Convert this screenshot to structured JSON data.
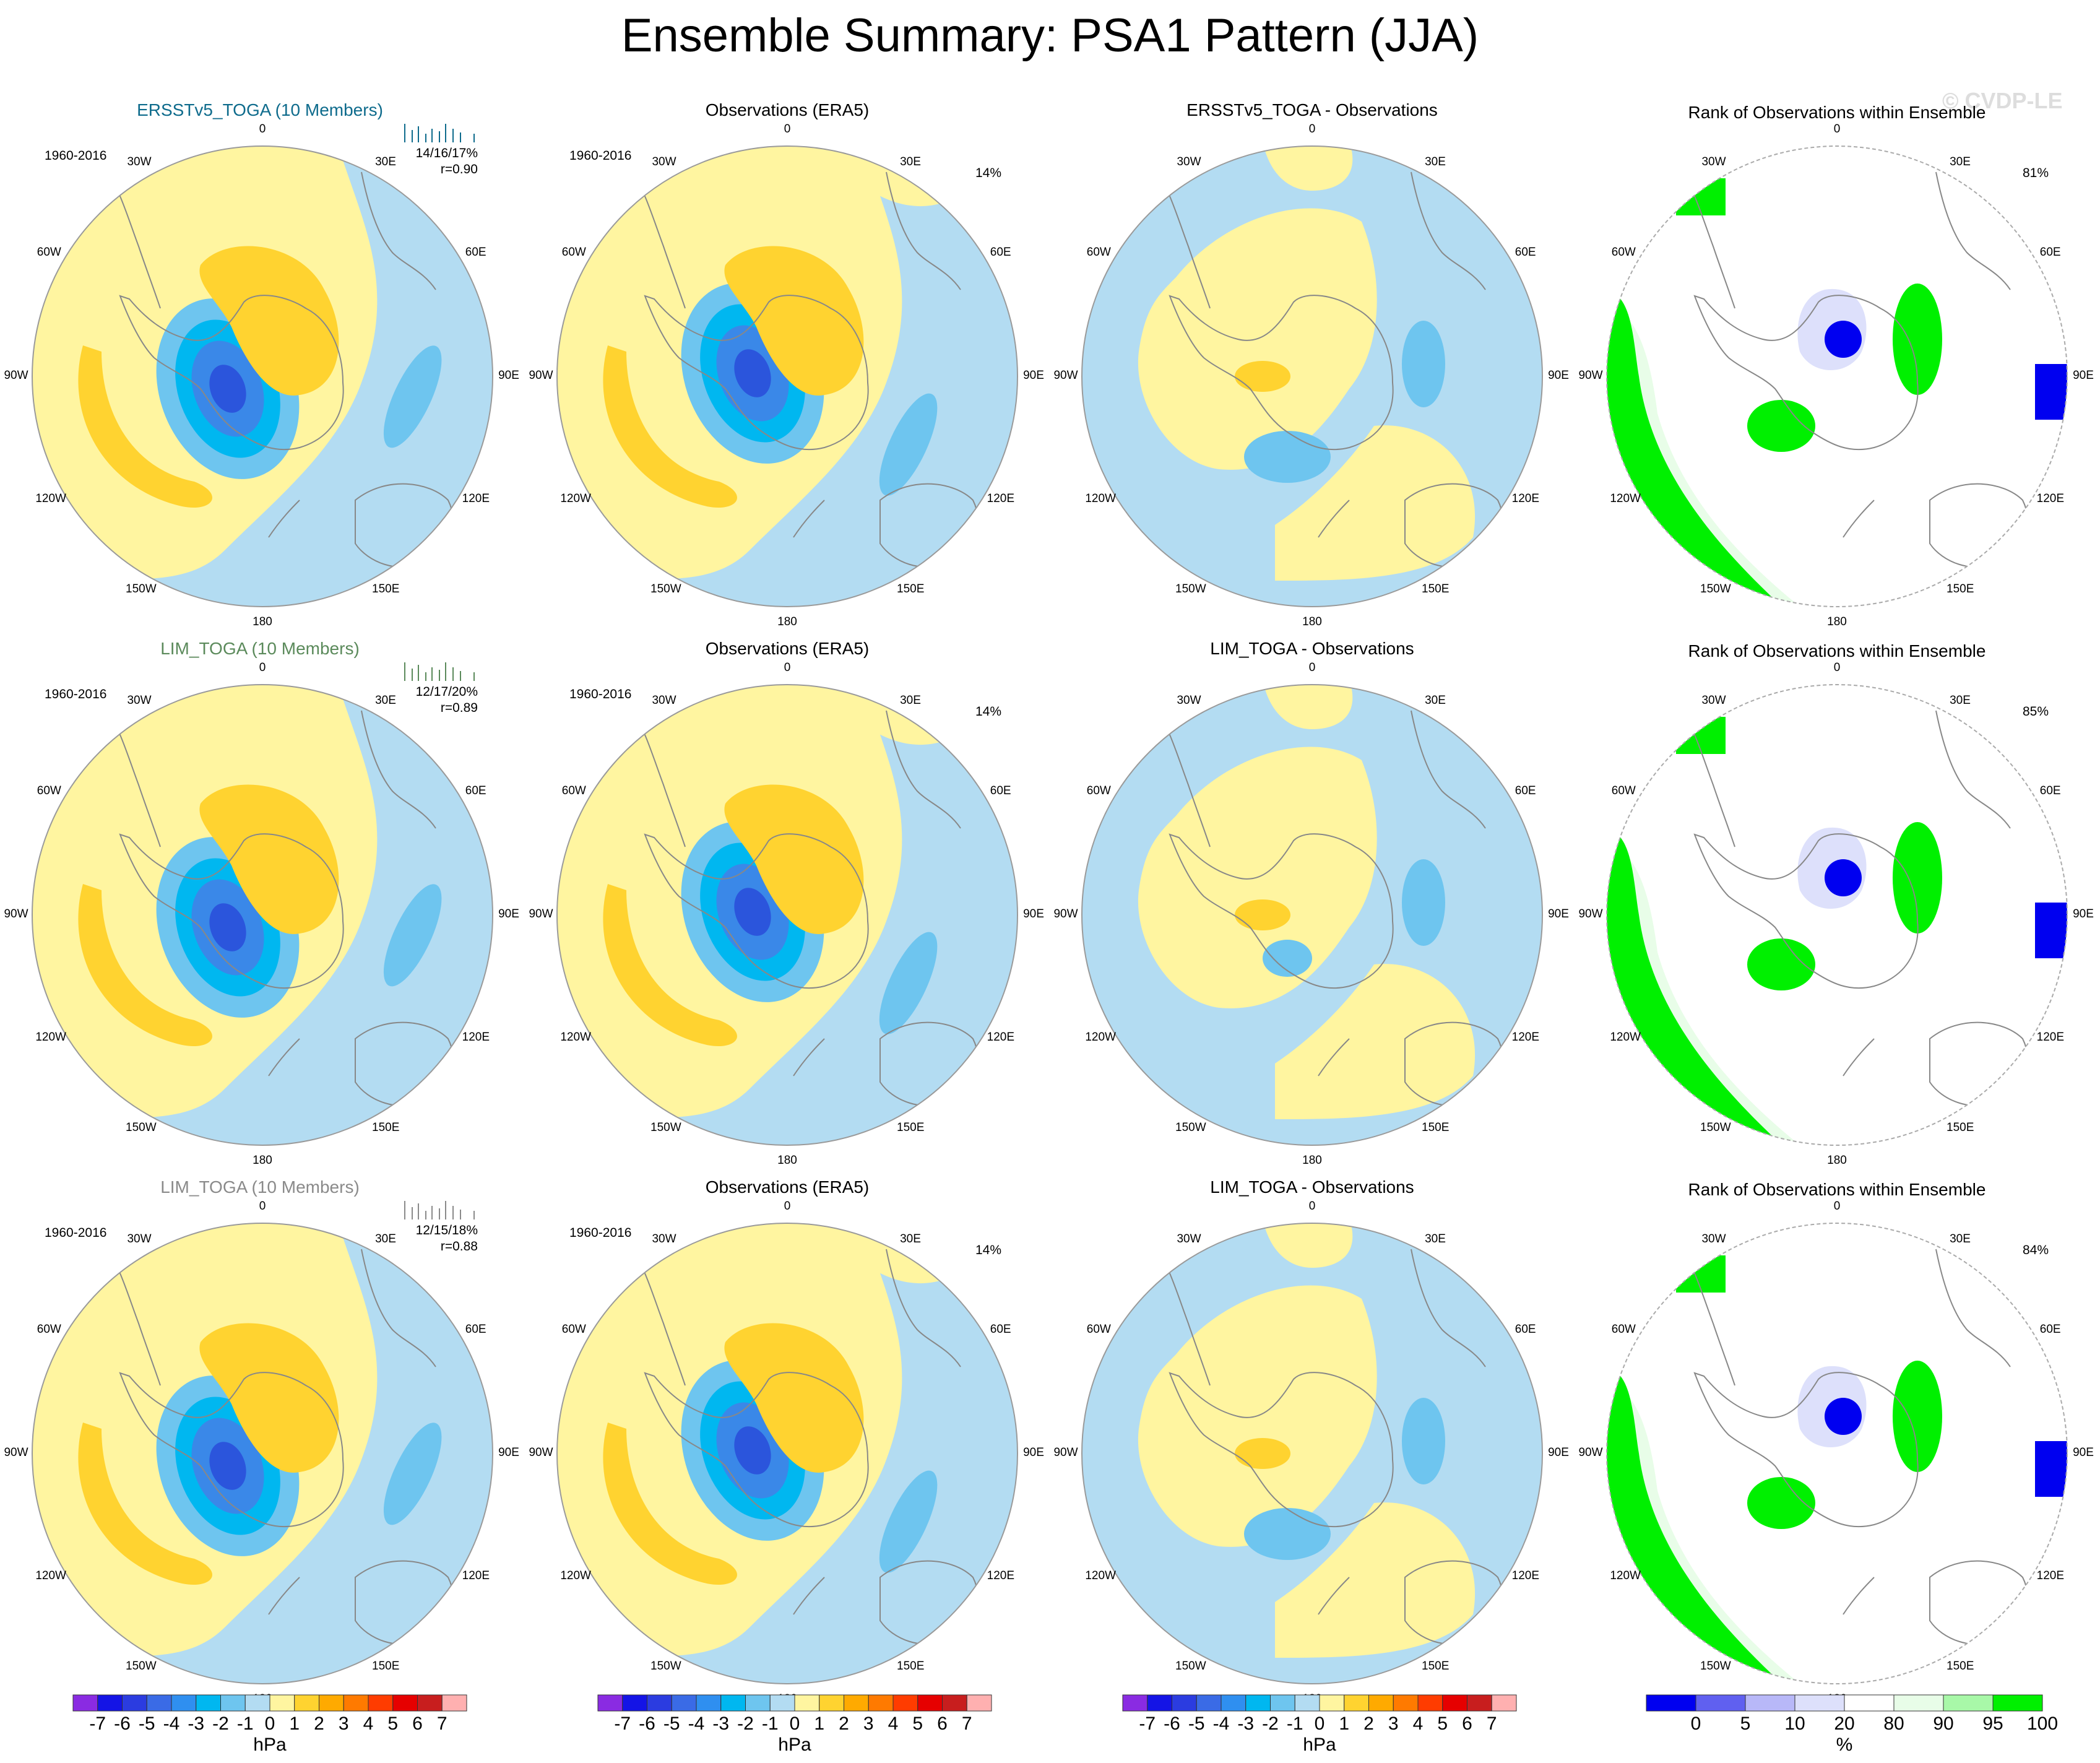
{
  "title": "Ensemble Summary: PSA1 Pattern (JJA)",
  "watermark": "© CVDP-LE",
  "colors": {
    "ens_title_row1": "#0e6b8c",
    "ens_title_row2": "#5b8a5b",
    "ens_title_row3": "#8a8a8a",
    "pos1": "#fff5a0",
    "pos2": "#ffd330",
    "neg1": "#b3dcf2",
    "neg2": "#6ec5ef",
    "neg3": "#00b7f0",
    "neg4": "#3a88e8",
    "neg5": "#2b55dc",
    "rank_green": "#00f000",
    "rank_lightgreen": "#e8fde8",
    "rank_lav": "#dde0fb",
    "rank_blue": "#0000f0"
  },
  "longitude_labels": [
    "0",
    "30E",
    "60E",
    "90E",
    "120E",
    "150E",
    "180",
    "150W",
    "120W",
    "90W",
    "60W",
    "30W"
  ],
  "rows": [
    {
      "ensemble_title": "ERSSTv5_TOGA (10 Members)",
      "years": "1960-2016",
      "stat_line1": "14/16/17%",
      "stat_line2": "r=0.90",
      "obs_title": "Observations (ERA5)",
      "obs_years": "1960-2016",
      "obs_pct": "14%",
      "diff_title": "ERSSTv5_TOGA - Observations",
      "rank_title": "Rank of Observations within Ensemble",
      "rank_pct": "81%"
    },
    {
      "ensemble_title": "LIM_TOGA (10 Members)",
      "years": "1960-2016",
      "stat_line1": "12/17/20%",
      "stat_line2": "r=0.89",
      "obs_title": "Observations (ERA5)",
      "obs_years": "1960-2016",
      "obs_pct": "14%",
      "diff_title": "LIM_TOGA - Observations",
      "rank_title": "Rank of Observations within Ensemble",
      "rank_pct": "85%"
    },
    {
      "ensemble_title": "LIM_TOGA (10 Members)",
      "years": "1960-2016",
      "stat_line1": "12/15/18%",
      "stat_line2": "r=0.88",
      "obs_title": "Observations (ERA5)",
      "obs_years": "1960-2016",
      "obs_pct": "14%",
      "diff_title": "LIM_TOGA - Observations",
      "rank_title": "Rank of Observations within Ensemble",
      "rank_pct": "84%"
    }
  ],
  "colorbar_hpa": {
    "unit": "hPa",
    "ticks": [
      "-7",
      "-6",
      "-5",
      "-4",
      "-3",
      "-2",
      "-1",
      "0",
      "1",
      "2",
      "3",
      "4",
      "5",
      "6",
      "7"
    ],
    "colors": [
      "#8a2be2",
      "#1414e6",
      "#2b3ce0",
      "#3a6be6",
      "#2f8ff0",
      "#00b7f0",
      "#6ec5ef",
      "#b3dcf2",
      "#fff5a0",
      "#ffd330",
      "#ffaa00",
      "#ff7a00",
      "#ff3c00",
      "#e60000",
      "#c81e1e",
      "#ffb0b0"
    ]
  },
  "colorbar_rank": {
    "unit": "%",
    "ticks": [
      "0",
      "5",
      "10",
      "20",
      "80",
      "90",
      "95",
      "100"
    ],
    "colors": [
      "#0000f0",
      "#6060f0",
      "#b8b8f8",
      "#dde0fb",
      "#ffffff",
      "#e8fde8",
      "#a8f8a8",
      "#00f000"
    ]
  },
  "chart_data": {
    "type": "heatmap",
    "title": "Ensemble Summary: PSA1 Pattern (JJA)",
    "description_units": "hPa",
    "projection": "south polar stereographic",
    "panels": [
      {
        "row": 1,
        "col": 1,
        "title": "ERSSTv5_TOGA (10 Members)",
        "years": "1960-2016",
        "stat": "14/16/17%",
        "r": 0.9
      },
      {
        "row": 1,
        "col": 2,
        "title": "Observations (ERA5)",
        "pct_variance": 14
      },
      {
        "row": 1,
        "col": 3,
        "title": "ERSSTv5_TOGA - Observations"
      },
      {
        "row": 1,
        "col": 4,
        "title": "Rank of Observations within Ensemble",
        "pct": 81
      },
      {
        "row": 2,
        "col": 1,
        "title": "LIM_TOGA (10 Members)",
        "years": "1960-2016",
        "stat": "12/17/20%",
        "r": 0.89
      },
      {
        "row": 2,
        "col": 2,
        "title": "Observations (ERA5)",
        "pct_variance": 14
      },
      {
        "row": 2,
        "col": 3,
        "title": "LIM_TOGA - Observations"
      },
      {
        "row": 2,
        "col": 4,
        "title": "Rank of Observations within Ensemble",
        "pct": 85
      },
      {
        "row": 3,
        "col": 1,
        "title": "LIM_TOGA (10 Members)",
        "years": "1960-2016",
        "stat": "12/15/18%",
        "r": 0.88
      },
      {
        "row": 3,
        "col": 2,
        "title": "Observations (ERA5)",
        "pct_variance": 14
      },
      {
        "row": 3,
        "col": 3,
        "title": "LIM_TOGA - Observations"
      },
      {
        "row": 3,
        "col": 4,
        "title": "Rank of Observations within Ensemble",
        "pct": 84
      }
    ],
    "colorbar_levels_hpa": [
      -7,
      -6,
      -5,
      -4,
      -3,
      -2,
      -1,
      0,
      1,
      2,
      3,
      4,
      5,
      6,
      7
    ],
    "colorbar_levels_rank_pct": [
      0,
      5,
      10,
      20,
      80,
      90,
      95,
      100
    ]
  }
}
